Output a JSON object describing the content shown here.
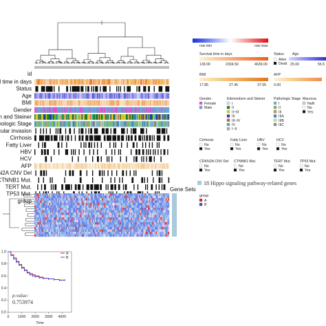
{
  "heatmap": {
    "header_label": "id",
    "track_labels": [
      "ral time in days",
      "Status",
      "Age",
      "BMI",
      "Gender",
      "ion and Steiner",
      "athologic Stage",
      "cular invasion",
      "Cirrhosis",
      "Fatty Liver",
      "HBV",
      "HCV",
      "AFP",
      "KN2A CNV Del",
      "CTNNB1 Mut.",
      "TERT Mut.",
      "TP53 Mut.",
      "group"
    ],
    "gene_sets_label": "Gene Sets",
    "gene_sets_text": "18 Hippo signaling pathway-related genes"
  },
  "legend": {
    "row_min": "row min",
    "row_max": "row max",
    "survival": {
      "title": "Survival time in days",
      "ticks": [
        "139.00",
        "2334.50",
        "4639.00"
      ]
    },
    "status": {
      "title": "Status",
      "items": [
        "Alive",
        "Dead"
      ]
    },
    "age": {
      "title": "Age",
      "ticks": [
        "25.00",
        "56.5"
      ]
    },
    "bmi": {
      "title": "BMI",
      "ticks": [
        "17.85",
        "27.45",
        "37.05"
      ]
    },
    "afp": {
      "title": "AFP",
      "ticks": [
        "0.00"
      ]
    },
    "gender": {
      "title": "Gender",
      "items": [
        "Female",
        "Male"
      ]
    },
    "edmondson": {
      "title": "Edmondson and Steiner",
      "items": [
        "I",
        "II",
        "II~III",
        "III",
        "III~IV",
        "IV",
        "I~II"
      ]
    },
    "stage": {
      "title": "Pathologic Stage",
      "items": [
        "I",
        "II",
        "III",
        "IIIA",
        "IIIB",
        "IIIC"
      ]
    },
    "macro": {
      "title": "Macrova",
      "items": [
        "NaN",
        "No",
        "Yes"
      ]
    },
    "cirrhosis": {
      "title": "Cirrhosis",
      "items": [
        "No",
        "Yes"
      ]
    },
    "fatty": {
      "title": "Fatty Liver",
      "items": [
        "No",
        "Yes"
      ]
    },
    "hbv": {
      "title": "HBV",
      "items": [
        "No",
        "Yes"
      ]
    },
    "hcv": {
      "title": "HCV",
      "items": [
        "No",
        "Yes"
      ]
    },
    "cdkn2a": {
      "title": "CDKN2A CNV Del",
      "items": [
        "No",
        "Yes"
      ]
    },
    "ctnnb1": {
      "title": "CTNNB1 Mut.",
      "items": [
        "No",
        "Yes"
      ]
    },
    "tert": {
      "title": "TERT Mut.",
      "items": [
        "No",
        "Yes"
      ]
    },
    "tp53": {
      "title": "TP53 Mut.",
      "items": [
        "No",
        "Yes"
      ]
    },
    "group": {
      "title": "group",
      "items": [
        "A",
        "B"
      ]
    }
  },
  "colors": {
    "groupA": "#e8141c",
    "groupB": "#2d48c8",
    "black": "#111111"
  },
  "km": {
    "legend": [
      "A",
      "B"
    ],
    "pvalue_label": "p-value:",
    "pvalue": "0.753974",
    "xlabel": "Time",
    "xticks": [
      "0",
      "1000",
      "2000",
      "3000",
      "4000"
    ],
    "yticks": [
      "0.0",
      "0.2",
      "0.4",
      "0.6",
      "0.8",
      "1.0"
    ]
  },
  "chart_data": {
    "type": "line",
    "xlabel": "Time",
    "ylabel": "",
    "xlim": [
      0,
      4700
    ],
    "ylim": [
      0,
      1
    ],
    "series": [
      {
        "name": "A",
        "x": [
          0,
          200,
          400,
          600,
          800,
          1000,
          1200,
          1400,
          1600,
          1800,
          2000,
          2300,
          2600,
          3000,
          3400,
          3800,
          4200
        ],
        "y": [
          1,
          0.95,
          0.9,
          0.84,
          0.79,
          0.74,
          0.7,
          0.66,
          0.64,
          0.62,
          0.6,
          0.58,
          0.56,
          0.55,
          0.54,
          0.53,
          0.53
        ]
      },
      {
        "name": "B",
        "x": [
          0,
          200,
          400,
          600,
          800,
          1000,
          1200,
          1400,
          1600,
          1800,
          2000,
          2300,
          2600,
          3000,
          3400,
          3800,
          4200
        ],
        "y": [
          1,
          0.94,
          0.88,
          0.83,
          0.78,
          0.73,
          0.69,
          0.65,
          0.62,
          0.6,
          0.59,
          0.57,
          0.56,
          0.55,
          0.54,
          0.53,
          0.53
        ]
      }
    ]
  }
}
